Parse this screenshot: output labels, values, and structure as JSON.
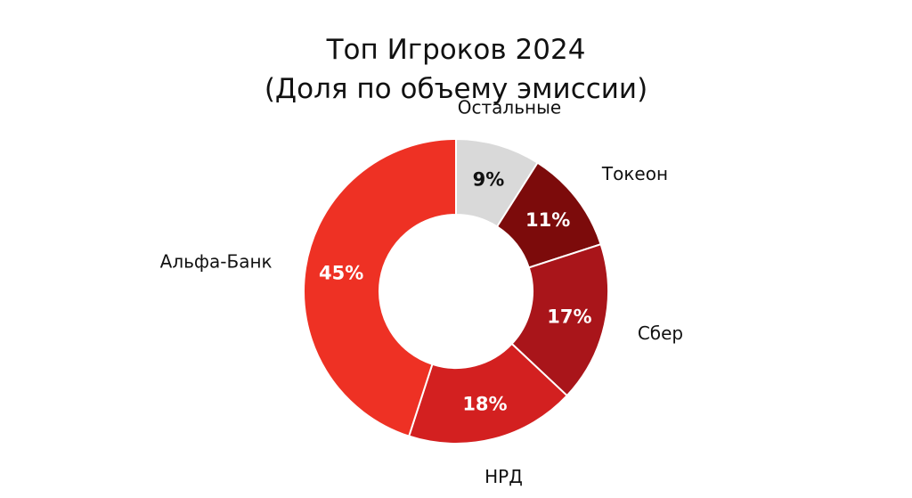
{
  "chart_data": {
    "type": "pie",
    "title_lines": [
      "Топ Игроков 2024",
      "(Доля по объему эмиссии)"
    ],
    "donut": true,
    "start": "top, clockwise",
    "slices": [
      {
        "label": "Остальные",
        "value": 9,
        "display": "9%",
        "color": "#d9d9d9",
        "text_color": "#111111"
      },
      {
        "label": "Токеон",
        "value": 11,
        "display": "11%",
        "color": "#7c0b0b",
        "text_color": "#ffffff"
      },
      {
        "label": "Сбер",
        "value": 17,
        "display": "17%",
        "color": "#a9151a",
        "text_color": "#ffffff"
      },
      {
        "label": "НРД",
        "value": 18,
        "display": "18%",
        "color": "#d32020",
        "text_color": "#ffffff"
      },
      {
        "label": "Альфа-Банк",
        "value": 45,
        "display": "45%",
        "color": "#ee3124",
        "text_color": "#ffffff"
      }
    ]
  }
}
